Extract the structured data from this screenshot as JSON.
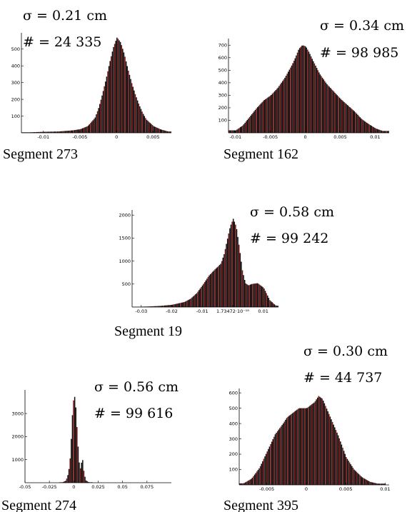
{
  "chart_data": [
    {
      "type": "bar",
      "panel_label": "Segment 273",
      "stats": {
        "sigma": "σ = 0.21 cm",
        "count": "# = 24 335"
      },
      "xlim": [
        -0.013,
        0.0075
      ],
      "ylim": [
        0,
        580
      ],
      "x_tick_labels": [
        "-0.01",
        "-0.005",
        "0",
        "0.005"
      ],
      "y_tick_labels": [
        "100",
        "200",
        "300",
        "400",
        "500"
      ],
      "x_ticks": [
        -0.01,
        -0.005,
        0,
        0.005
      ],
      "y_ticks": [
        100,
        200,
        300,
        400,
        500
      ],
      "x": [
        -0.012,
        -0.01,
        -0.008,
        -0.006,
        -0.005,
        -0.004,
        -0.003,
        -0.0025,
        -0.002,
        -0.0015,
        -0.001,
        -0.0005,
        0,
        0.0005,
        0.001,
        0.0015,
        0.002,
        0.0025,
        0.003,
        0.0035,
        0.004,
        0.005,
        0.006,
        0.007
      ],
      "values": [
        3,
        6,
        8,
        15,
        22,
        40,
        90,
        150,
        230,
        320,
        420,
        510,
        570,
        540,
        470,
        380,
        300,
        230,
        170,
        120,
        80,
        40,
        20,
        8
      ]
    },
    {
      "type": "bar",
      "panel_label": "Segment 162",
      "stats": {
        "sigma": "σ = 0.34 cm",
        "count": "# = 98 985"
      },
      "xlim": [
        -0.011,
        0.012
      ],
      "ylim": [
        0,
        730
      ],
      "x_tick_labels": [
        "-0.01",
        "-0.005",
        "0",
        "0.005",
        "0.01"
      ],
      "y_tick_labels": [
        "100",
        "200",
        "300",
        "400",
        "500",
        "600",
        "700"
      ],
      "x_ticks": [
        -0.01,
        -0.005,
        0,
        0.005,
        0.01
      ],
      "y_ticks": [
        100,
        200,
        300,
        400,
        500,
        600,
        700
      ],
      "x": [
        -0.01,
        -0.009,
        -0.008,
        -0.007,
        -0.006,
        -0.005,
        -0.004,
        -0.003,
        -0.002,
        -0.0015,
        -0.001,
        -0.0005,
        0,
        0.0005,
        0.001,
        0.002,
        0.003,
        0.004,
        0.005,
        0.006,
        0.007,
        0.008,
        0.009,
        0.01,
        0.011
      ],
      "values": [
        20,
        60,
        130,
        200,
        260,
        300,
        360,
        440,
        540,
        600,
        670,
        700,
        690,
        640,
        580,
        470,
        390,
        330,
        270,
        220,
        170,
        110,
        70,
        35,
        15
      ]
    },
    {
      "type": "bar",
      "panel_label": "Segment 19",
      "stats": {
        "sigma": "σ = 0.58 cm",
        "count": "# = 99 242"
      },
      "xlim": [
        -0.033,
        0.015
      ],
      "ylim": [
        0,
        2050
      ],
      "x_tick_labels": [
        "-0.03",
        "-0.02",
        "-0.01",
        "1.73472·10⁻¹⁸",
        "0.01"
      ],
      "y_tick_labels": [
        "500",
        "1000",
        "1500",
        "2000"
      ],
      "x_ticks": [
        -0.03,
        -0.02,
        -0.01,
        0,
        0.01
      ],
      "y_ticks": [
        500,
        1000,
        1500,
        2000
      ],
      "x": [
        -0.032,
        -0.028,
        -0.024,
        -0.02,
        -0.016,
        -0.014,
        -0.012,
        -0.01,
        -0.008,
        -0.006,
        -0.005,
        -0.004,
        -0.003,
        -0.002,
        -0.001,
        0,
        0.001,
        0.002,
        0.003,
        0.004,
        0.005,
        0.006,
        0.008,
        0.01,
        0.012,
        0.014
      ],
      "values": [
        5,
        12,
        25,
        50,
        110,
        180,
        300,
        480,
        680,
        820,
        880,
        950,
        1150,
        1450,
        1750,
        1920,
        1750,
        1300,
        800,
        520,
        470,
        500,
        520,
        420,
        150,
        30
      ]
    },
    {
      "type": "bar",
      "panel_label": "Segment 274",
      "stats": {
        "sigma": "σ = 0.56 cm",
        "count": "# = 99 616"
      },
      "xlim": [
        -0.05,
        0.1
      ],
      "ylim": [
        0,
        3900
      ],
      "x_tick_labels": [
        "-0.05",
        "-0.025",
        "0",
        "0.025",
        "0.05",
        "0.075"
      ],
      "y_tick_labels": [
        "1000",
        "2000",
        "3000"
      ],
      "x_ticks": [
        -0.05,
        -0.025,
        0,
        0.025,
        0.05,
        0.075
      ],
      "y_ticks": [
        1000,
        2000,
        3000
      ],
      "x": [
        -0.012,
        -0.009,
        -0.007,
        -0.005,
        -0.004,
        -0.003,
        -0.002,
        -0.001,
        0,
        0.001,
        0.002,
        0.003,
        0.004,
        0.005,
        0.006,
        0.007,
        0.008,
        0.009,
        0.01,
        0.012,
        0.015
      ],
      "values": [
        20,
        80,
        250,
        700,
        1200,
        2000,
        2900,
        3500,
        3800,
        3600,
        3000,
        2200,
        1500,
        900,
        600,
        700,
        1100,
        900,
        400,
        100,
        20
      ]
    },
    {
      "type": "bar",
      "panel_label": "Segment 395",
      "stats": {
        "sigma": "σ = 0.30 cm",
        "count": "# = 44 737"
      },
      "xlim": [
        -0.0085,
        0.0105
      ],
      "ylim": [
        0,
        610
      ],
      "x_tick_labels": [
        "-0.005",
        "0",
        "0.005",
        "0.01"
      ],
      "y_tick_labels": [
        "100",
        "200",
        "300",
        "400",
        "500",
        "600"
      ],
      "x_ticks": [
        -0.005,
        0,
        0.005,
        0.01
      ],
      "y_ticks": [
        100,
        200,
        300,
        400,
        500,
        600
      ],
      "x": [
        -0.008,
        -0.007,
        -0.006,
        -0.005,
        -0.004,
        -0.003,
        -0.0025,
        -0.002,
        -0.0015,
        -0.001,
        -0.0005,
        0,
        0.0005,
        0.001,
        0.0015,
        0.002,
        0.0025,
        0.003,
        0.0035,
        0.004,
        0.0045,
        0.005,
        0.006,
        0.007,
        0.008,
        0.009
      ],
      "values": [
        10,
        40,
        110,
        220,
        330,
        400,
        440,
        460,
        480,
        500,
        500,
        500,
        520,
        540,
        580,
        560,
        500,
        440,
        380,
        320,
        250,
        180,
        100,
        50,
        20,
        8
      ]
    }
  ]
}
